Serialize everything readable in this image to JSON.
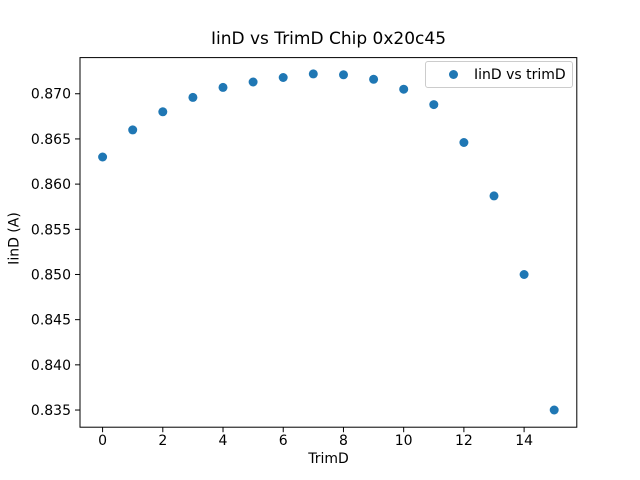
{
  "figure": {
    "background": "#ffffff"
  },
  "chart_data": {
    "type": "scatter",
    "title": "IinD vs TrimD Chip 0x20c45",
    "xlabel": "TrimD",
    "ylabel": "IinD (A)",
    "legend": [
      {
        "label": "IinD vs trimD",
        "marker": "circle",
        "color": "#1f77b4"
      }
    ],
    "legend_position": "upper right",
    "marker_color": "#1f77b4",
    "axis_color": "#000000",
    "grid": false,
    "x": [
      0,
      1,
      2,
      3,
      4,
      5,
      6,
      7,
      8,
      9,
      10,
      11,
      12,
      13,
      14,
      15
    ],
    "y": [
      0.863,
      0.866,
      0.868,
      0.8696,
      0.8707,
      0.8713,
      0.8718,
      0.8722,
      0.8721,
      0.8716,
      0.8705,
      0.8688,
      0.8646,
      0.8587,
      0.85,
      0.835
    ],
    "xlim": [
      -0.75,
      15.75
    ],
    "ylim": [
      0.8331,
      0.874
    ],
    "xticks": [
      0,
      2,
      4,
      6,
      8,
      10,
      12,
      14
    ],
    "yticks": [
      0.835,
      0.84,
      0.845,
      0.85,
      0.855,
      0.86,
      0.865,
      0.87
    ]
  }
}
